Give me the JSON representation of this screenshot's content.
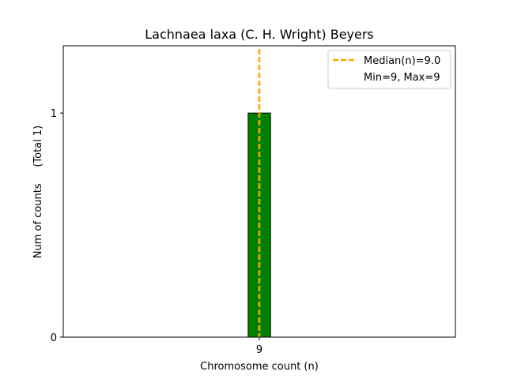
{
  "chart_data": {
    "type": "bar",
    "title": "Lachnaea laxa (C. H. Wright) Beyers",
    "xlabel": "Chromosome count (n)",
    "ylabel": "Num of counts     (Total 1)",
    "categories": [
      "9"
    ],
    "x": [
      9
    ],
    "values": [
      1
    ],
    "xlim": [
      7.25,
      10.75
    ],
    "ylim": [
      0,
      1.3
    ],
    "yticks": [
      0,
      1
    ],
    "xticks": [
      9
    ],
    "bar_color": "#008000",
    "bar_edge_color": "#000000",
    "median": 9.0,
    "median_color": "#FFA500",
    "legend": {
      "placement": "top-right",
      "entries": [
        "Median(n)=9.0",
        "Min=9, Max=9"
      ]
    },
    "grid": false
  }
}
